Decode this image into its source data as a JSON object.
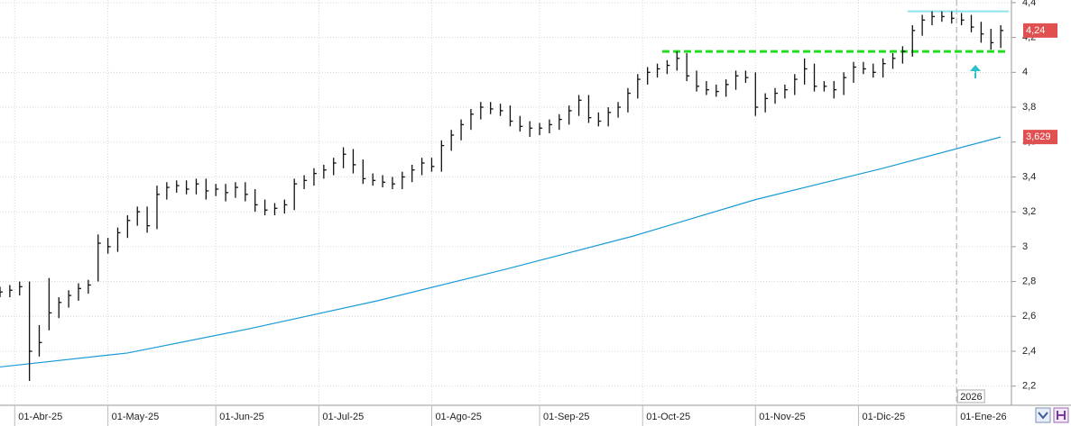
{
  "chart_data": {
    "type": "ohlc",
    "x": [
      -3,
      -1,
      1,
      3,
      5,
      7,
      9,
      11,
      13,
      15,
      17,
      19,
      21,
      23,
      25,
      27,
      29,
      31,
      33,
      35,
      37,
      39,
      41,
      43,
      45,
      47,
      49,
      51,
      53,
      55,
      57,
      59,
      61,
      63,
      65,
      67,
      69,
      71,
      73,
      75,
      77,
      79,
      81,
      83,
      85,
      87,
      89,
      91,
      93,
      95,
      97,
      99,
      101,
      103,
      105,
      107,
      109,
      111,
      113,
      115,
      117,
      119,
      121,
      123,
      125,
      127,
      129,
      131,
      133,
      135,
      137,
      139,
      141,
      143,
      145,
      147,
      149,
      151,
      153,
      155,
      157,
      159,
      161,
      163,
      165,
      167,
      169,
      171,
      173,
      175,
      177,
      179,
      181,
      183,
      185,
      187,
      189,
      191,
      193,
      195,
      197,
      199,
      201
    ],
    "high": [
      2.77,
      2.78,
      2.8,
      2.8,
      2.55,
      2.82,
      2.71,
      2.75,
      2.79,
      2.81,
      3.07,
      3.05,
      3.11,
      3.18,
      3.23,
      3.23,
      3.35,
      3.37,
      3.38,
      3.38,
      3.39,
      3.39,
      3.36,
      3.36,
      3.37,
      3.37,
      3.33,
      3.27,
      3.25,
      3.27,
      3.39,
      3.41,
      3.45,
      3.47,
      3.51,
      3.57,
      3.56,
      3.5,
      3.42,
      3.41,
      3.4,
      3.43,
      3.47,
      3.51,
      3.51,
      3.61,
      3.67,
      3.73,
      3.79,
      3.83,
      3.83,
      3.82,
      3.81,
      3.75,
      3.72,
      3.71,
      3.73,
      3.76,
      3.81,
      3.87,
      3.87,
      3.77,
      3.8,
      3.83,
      3.91,
      3.99,
      4.03,
      4.05,
      4.07,
      4.12,
      4.11,
      4.01,
      3.95,
      3.93,
      3.96,
      4.01,
      4.01,
      4.0,
      3.88,
      3.91,
      3.93,
      3.99,
      4.08,
      4.05,
      3.95,
      3.95,
      4.0,
      4.06,
      4.06,
      4.05,
      4.08,
      4.11,
      4.15,
      4.27,
      4.33,
      4.35,
      4.35,
      4.35,
      4.34,
      4.33,
      4.29,
      4.25,
      4.27
    ],
    "low": [
      2.71,
      2.71,
      2.72,
      2.23,
      2.37,
      2.52,
      2.59,
      2.65,
      2.69,
      2.73,
      2.8,
      2.96,
      2.97,
      3.05,
      3.12,
      3.08,
      3.1,
      3.27,
      3.31,
      3.3,
      3.3,
      3.27,
      3.29,
      3.26,
      3.28,
      3.26,
      3.2,
      3.18,
      3.18,
      3.19,
      3.21,
      3.33,
      3.35,
      3.39,
      3.41,
      3.45,
      3.42,
      3.36,
      3.35,
      3.34,
      3.33,
      3.33,
      3.37,
      3.41,
      3.43,
      3.43,
      3.55,
      3.61,
      3.67,
      3.73,
      3.76,
      3.75,
      3.69,
      3.66,
      3.63,
      3.64,
      3.65,
      3.67,
      3.7,
      3.75,
      3.71,
      3.69,
      3.69,
      3.74,
      3.77,
      3.85,
      3.93,
      3.97,
      3.99,
      4.01,
      3.95,
      3.89,
      3.87,
      3.86,
      3.86,
      3.9,
      3.94,
      3.75,
      3.77,
      3.82,
      3.85,
      3.87,
      3.93,
      3.89,
      3.89,
      3.85,
      3.87,
      3.94,
      3.99,
      3.97,
      3.97,
      4.02,
      4.05,
      4.09,
      4.21,
      4.27,
      4.29,
      4.28,
      4.27,
      4.23,
      4.17,
      4.13,
      4.14
    ],
    "close": [
      2.74,
      2.75,
      2.77,
      2.4,
      2.45,
      2.62,
      2.68,
      2.72,
      2.76,
      2.78,
      3.02,
      3.0,
      3.08,
      3.15,
      3.2,
      3.12,
      3.3,
      3.34,
      3.35,
      3.33,
      3.36,
      3.32,
      3.33,
      3.31,
      3.34,
      3.3,
      3.24,
      3.21,
      3.22,
      3.24,
      3.36,
      3.38,
      3.42,
      3.44,
      3.48,
      3.53,
      3.47,
      3.39,
      3.38,
      3.37,
      3.36,
      3.4,
      3.44,
      3.48,
      3.46,
      3.58,
      3.64,
      3.7,
      3.76,
      3.8,
      3.79,
      3.78,
      3.72,
      3.69,
      3.68,
      3.68,
      3.7,
      3.73,
      3.78,
      3.84,
      3.74,
      3.72,
      3.77,
      3.8,
      3.88,
      3.96,
      4.0,
      4.02,
      4.04,
      4.08,
      3.98,
      3.92,
      3.9,
      3.89,
      3.93,
      3.98,
      3.97,
      3.8,
      3.85,
      3.88,
      3.9,
      3.96,
      4.02,
      3.92,
      3.92,
      3.9,
      3.97,
      4.03,
      4.02,
      4.0,
      4.05,
      4.08,
      4.12,
      4.24,
      4.3,
      4.32,
      4.32,
      4.31,
      4.3,
      4.26,
      4.22,
      4.17,
      4.24
    ],
    "bar_color": "#111111",
    "moving_average": {
      "color": "#1a9bd7",
      "x": [
        -3,
        23,
        48,
        74,
        100,
        126,
        151,
        177,
        201
      ],
      "values": [
        2.31,
        2.39,
        2.53,
        2.69,
        2.87,
        3.06,
        3.27,
        3.45,
        3.629
      ]
    },
    "last_price": {
      "value": 4.24,
      "label": "4,24",
      "color": "#e05050"
    },
    "ma_last": {
      "value": 3.629,
      "label": "3,629",
      "color": "#e05050"
    },
    "resistance": {
      "value": 4.12,
      "x_start": 132,
      "color": "#22dd22"
    },
    "top_line": {
      "value": 4.35,
      "x_start": 182,
      "color": "#8fe3ea"
    },
    "year_marker": {
      "label": "2026",
      "x": 192
    },
    "xlim": [
      -3,
      203
    ],
    "ylim": [
      2.09,
      4.415
    ],
    "xticks": [
      {
        "value": 0,
        "label": "01-Abr-25"
      },
      {
        "value": 19,
        "label": "01-May-25"
      },
      {
        "value": 41,
        "label": "01-Jun-25"
      },
      {
        "value": 62,
        "label": "01-Jul-25"
      },
      {
        "value": 85,
        "label": "01-Ago-25"
      },
      {
        "value": 107,
        "label": "01-Sep-25"
      },
      {
        "value": 128,
        "label": "01-Oct-25"
      },
      {
        "value": 151,
        "label": "01-Nov-25"
      },
      {
        "value": 172,
        "label": "01-Dic-25"
      },
      {
        "value": 192,
        "label": "01-Ene-26"
      }
    ],
    "yticks": [
      {
        "value": 2.2,
        "label": "2,2"
      },
      {
        "value": 2.4,
        "label": "2,4"
      },
      {
        "value": 2.6,
        "label": "2,6"
      },
      {
        "value": 2.8,
        "label": "2,8"
      },
      3,
      {
        "value": 3.2,
        "label": "3,2"
      },
      {
        "value": 3.4,
        "label": "3,4"
      },
      {
        "value": 3.6,
        "label": "3,6"
      },
      {
        "value": 3.8,
        "label": "3,8"
      },
      4,
      {
        "value": 4.2,
        "label": "4,2"
      },
      {
        "value": 4.4,
        "label": "4,4"
      }
    ],
    "grid": true
  }
}
